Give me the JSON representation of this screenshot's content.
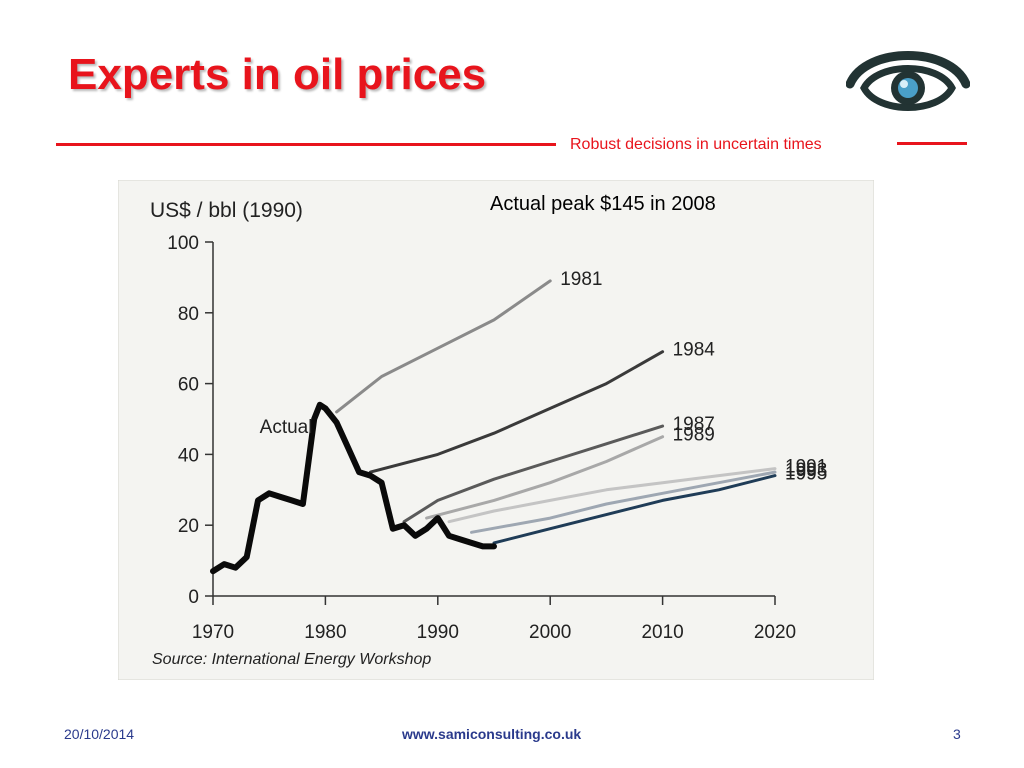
{
  "slide": {
    "title": "Experts in oil prices",
    "tagline": "Robust decisions in uncertain times",
    "annotation": "Actual peak $145 in 2008",
    "footer": {
      "date": "20/10/2014",
      "url": "www.samiconsulting.co.uk",
      "page": "3"
    },
    "logo_icon": "eye-icon",
    "colors": {
      "accent": "#e8141c",
      "footer_text": "#2a3a8c"
    }
  },
  "chart_data": {
    "type": "line",
    "title": "US$ / bbl (1990)",
    "source": "Source: International Energy Workshop",
    "xlim": [
      1970,
      2020
    ],
    "ylim": [
      0,
      100
    ],
    "xticks": [
      1970,
      1980,
      1990,
      2000,
      2010,
      2020
    ],
    "yticks": [
      0,
      20,
      40,
      60,
      80,
      100
    ],
    "grid": false,
    "series": [
      {
        "name": "Actual",
        "color": "#0a0a0a",
        "width": 6,
        "x": [
          1970,
          1971,
          1972,
          1973,
          1974,
          1975,
          1976,
          1977,
          1978,
          1979,
          1979.5,
          1980,
          1981,
          1982,
          1983,
          1984,
          1985,
          1986,
          1987,
          1988,
          1989,
          1990,
          1991,
          1992,
          1993,
          1994,
          1995
        ],
        "y": [
          7,
          9,
          8,
          11,
          27,
          29,
          28,
          27,
          26,
          50,
          54,
          53,
          49,
          42,
          35,
          34,
          32,
          19,
          20,
          17,
          19,
          22,
          17,
          16,
          15,
          14,
          14
        ]
      },
      {
        "name": "1981",
        "color": "#8a8a8a",
        "width": 3,
        "x": [
          1981,
          1985,
          1990,
          1995,
          2000
        ],
        "y": [
          52,
          62,
          70,
          78,
          89
        ]
      },
      {
        "name": "1984",
        "color": "#3a3a3a",
        "width": 3,
        "x": [
          1984,
          1990,
          1995,
          2000,
          2005,
          2010
        ],
        "y": [
          35,
          40,
          46,
          53,
          60,
          69
        ]
      },
      {
        "name": "1987",
        "color": "#5a5a5a",
        "width": 3,
        "x": [
          1987,
          1990,
          1995,
          2000,
          2005,
          2010
        ],
        "y": [
          21,
          27,
          33,
          38,
          43,
          48
        ]
      },
      {
        "name": "1989",
        "color": "#a8a8a8",
        "width": 3,
        "x": [
          1989,
          1995,
          2000,
          2005,
          2010
        ],
        "y": [
          22,
          27,
          32,
          38,
          45
        ]
      },
      {
        "name": "1991",
        "color": "#c4c4c4",
        "width": 3,
        "x": [
          1991,
          1995,
          2000,
          2005,
          2010,
          2015,
          2020
        ],
        "y": [
          21,
          24,
          27,
          30,
          32,
          34,
          36
        ]
      },
      {
        "name": "1993",
        "color": "#9ea7b2",
        "width": 3,
        "x": [
          1993,
          2000,
          2005,
          2010,
          2015,
          2020
        ],
        "y": [
          18,
          22,
          26,
          29,
          32,
          35
        ]
      },
      {
        "name": "1995",
        "color": "#1f3c57",
        "width": 3,
        "x": [
          1995,
          2000,
          2005,
          2010,
          2015,
          2020
        ],
        "y": [
          15,
          19,
          23,
          27,
          30,
          34
        ]
      }
    ]
  }
}
